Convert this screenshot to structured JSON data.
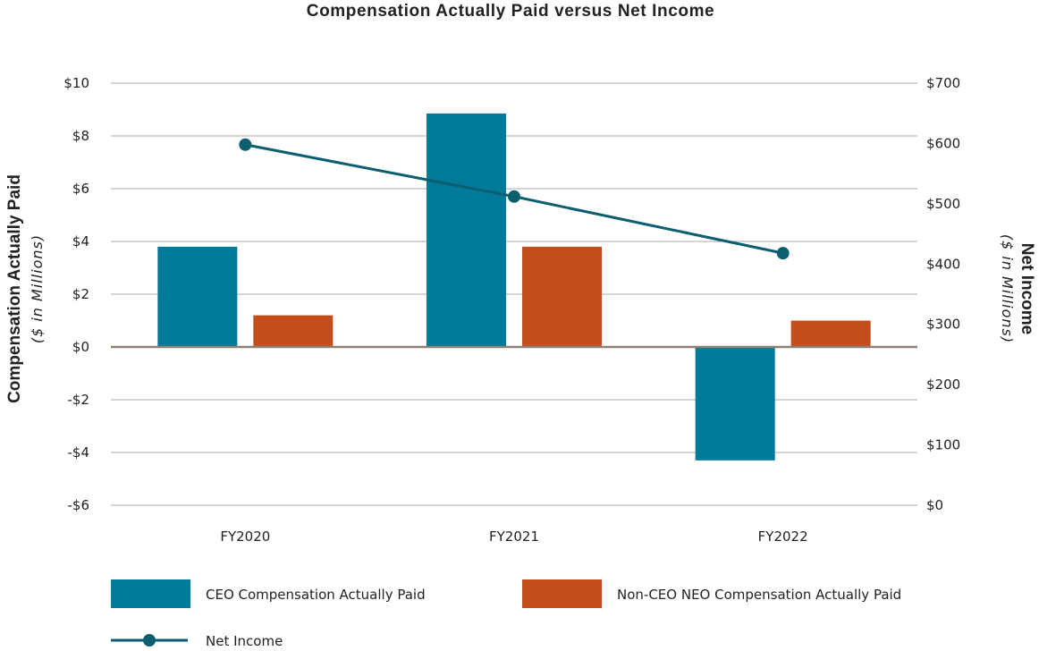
{
  "chart_data": {
    "type": "bar",
    "title": "Compensation Actually Paid versus Net Income",
    "categories": [
      "FY2020",
      "FY2021",
      "FY2022"
    ],
    "left_axis": {
      "label": "Compensation Actually Paid",
      "sublabel": "($ in Millions)",
      "ylim": [
        -6,
        10
      ],
      "ticks": [
        10,
        8,
        6,
        4,
        2,
        0,
        -2,
        -4,
        -6
      ],
      "tick_labels": [
        "$10",
        "$8",
        "$6",
        "$4",
        "$2",
        "$0",
        "-$2",
        "-$4",
        "-$6"
      ]
    },
    "right_axis": {
      "label": "Net Income",
      "sublabel": "($ in Millions)",
      "ylim": [
        0,
        700
      ],
      "ticks": [
        700,
        600,
        500,
        400,
        300,
        200,
        100,
        0
      ],
      "tick_labels": [
        "$700",
        "$600",
        "$500",
        "$400",
        "$300",
        "$200",
        "$100",
        "$0"
      ]
    },
    "series": [
      {
        "name": "CEO Compensation Actually Paid",
        "type": "bar",
        "axis": "left",
        "color": "#007a99",
        "values": [
          3.8,
          8.85,
          -4.3
        ]
      },
      {
        "name": "Non-CEO NEO Compensation Actually Paid",
        "type": "bar",
        "axis": "left",
        "color": "#c44d1c",
        "values": [
          1.2,
          3.8,
          1.0
        ]
      },
      {
        "name": "Net Income",
        "type": "line",
        "axis": "right",
        "color": "#0d5e6e",
        "values": [
          598,
          512,
          418
        ]
      }
    ],
    "grid": true,
    "legend": "bottom"
  }
}
